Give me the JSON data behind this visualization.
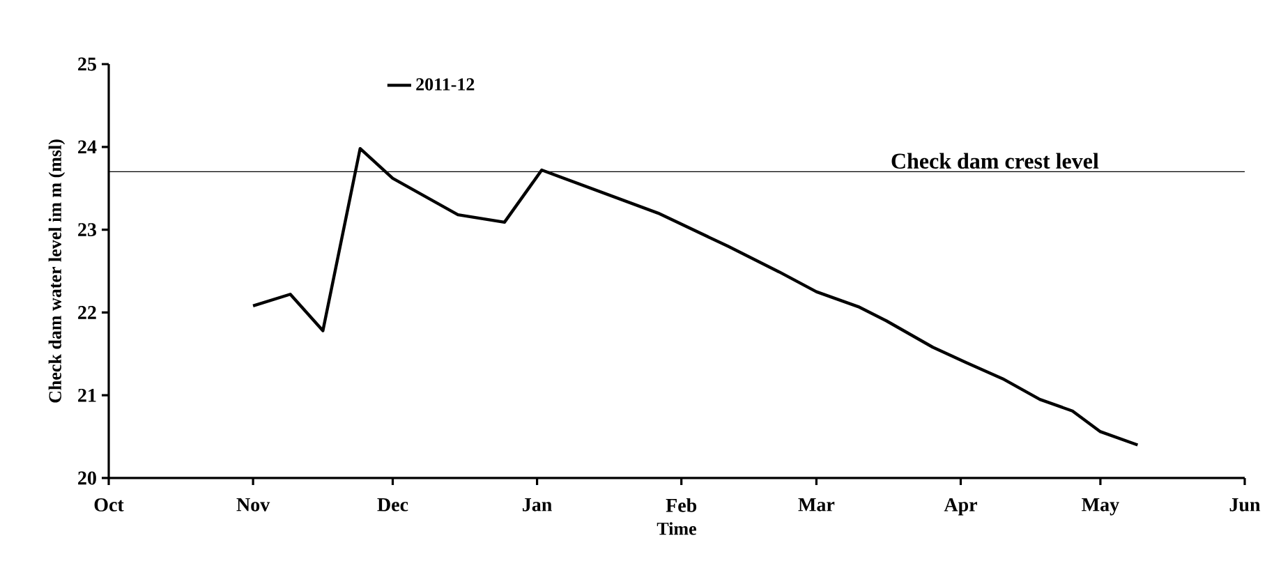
{
  "chart_data": {
    "type": "line",
    "xlabel": "Time",
    "ylabel": "Check dam water level im m (msl)",
    "x": [
      "2011-11-01",
      "2011-11-09",
      "2011-11-16",
      "2011-11-24",
      "2011-12-01",
      "2011-12-15",
      "2011-12-25",
      "2012-01-02",
      "2012-01-27",
      "2012-02-11",
      "2012-02-22",
      "2012-03-01",
      "2012-03-10",
      "2012-03-16",
      "2012-03-26",
      "2012-04-02",
      "2012-04-10",
      "2012-04-18",
      "2012-04-25",
      "2012-05-01",
      "2012-05-09"
    ],
    "series": [
      {
        "name": "2011-12",
        "color": "#000000",
        "values": [
          22.08,
          22.22,
          21.78,
          23.98,
          23.62,
          23.18,
          23.09,
          23.72,
          23.2,
          22.8,
          22.49,
          22.25,
          22.07,
          21.9,
          21.58,
          21.4,
          21.2,
          20.95,
          20.81,
          20.56,
          20.4
        ]
      }
    ],
    "xlim": [
      "2011-10-01",
      "2012-06-01"
    ],
    "xticks": [
      {
        "value": "2011-10-01",
        "label": "Oct"
      },
      {
        "value": "2011-11-01",
        "label": "Nov"
      },
      {
        "value": "2011-12-01",
        "label": "Dec"
      },
      {
        "value": "2012-01-01",
        "label": "Jan"
      },
      {
        "value": "2012-02-01",
        "label": "Feb"
      },
      {
        "value": "2012-03-01",
        "label": "Mar"
      },
      {
        "value": "2012-04-01",
        "label": "Apr"
      },
      {
        "value": "2012-05-01",
        "label": "May"
      },
      {
        "value": "2012-06-01",
        "label": "Jun"
      }
    ],
    "ylim": [
      20,
      25
    ],
    "yticks": [
      20,
      21,
      22,
      23,
      24,
      25
    ],
    "ref_lines": [
      {
        "axis": "y",
        "value": 23.7,
        "label": "Check dam crest level",
        "color": "#000000",
        "line_style": "solid"
      }
    ],
    "legend": "top",
    "marker": "none",
    "line_style": "solid",
    "grid": false
  }
}
